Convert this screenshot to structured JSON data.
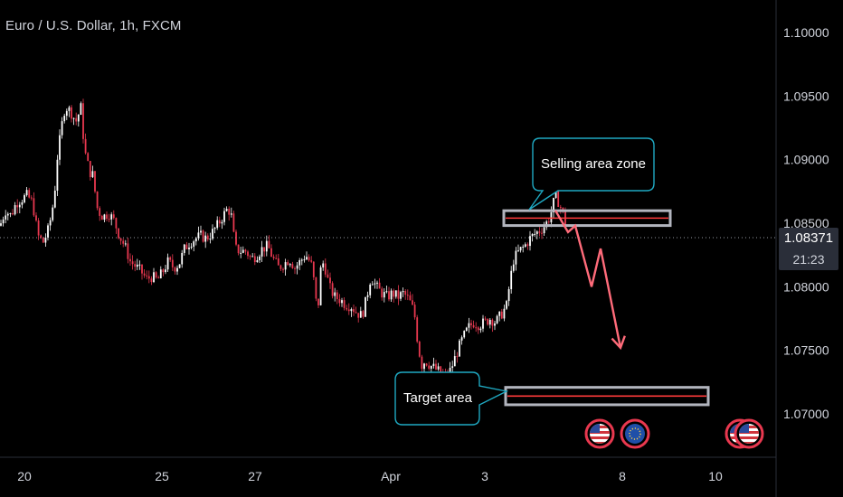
{
  "header": {
    "symbol_title": "Euro / U.S. Dollar, 1h, FXCM"
  },
  "price_badge": {
    "value": "1.08371",
    "countdown": "21:23"
  },
  "annotations": {
    "selling_zone_label": "Selling area zone",
    "target_label": "Target area"
  },
  "colors": {
    "background": "#000000",
    "up_candle": "#ffffff",
    "down_candle": "#e8384f",
    "zone_border": "#b2b5be",
    "zone_line": "#ff3b3b",
    "callout_border": "#1fa9c2",
    "arrow": "#ff6b7a",
    "axis_text": "#d1d4dc"
  },
  "event_icons": [
    {
      "name": "us-flag-icon",
      "date": "Apr 6"
    },
    {
      "name": "eu-flag-icon",
      "date": "Apr 8"
    },
    {
      "name": "us-flag-icon",
      "date": "Apr 11"
    },
    {
      "name": "us-flag-icon",
      "date": "Apr 11"
    }
  ],
  "chart_data": {
    "type": "candlestick",
    "title": "Euro / U.S. Dollar, 1h, FXCM",
    "xlabel": "",
    "ylabel": "",
    "y_ticks": [
      "1.10000",
      "1.09500",
      "1.09000",
      "1.08500",
      "1.08000",
      "1.07500",
      "1.07000"
    ],
    "x_ticks": [
      "20",
      "25",
      "27",
      "Apr",
      "3",
      "8",
      "10"
    ],
    "ylim": [
      1.0665,
      1.1025
    ],
    "last_price": 1.08371,
    "price_path": [
      [
        0,
        1.0848
      ],
      [
        6,
        1.086
      ],
      [
        12,
        1.0856
      ],
      [
        18,
        1.0866
      ],
      [
        24,
        1.0869
      ],
      [
        30,
        1.0872
      ],
      [
        36,
        1.0866
      ],
      [
        42,
        1.084
      ],
      [
        48,
        1.0835
      ],
      [
        54,
        1.0846
      ],
      [
        60,
        1.087
      ],
      [
        63,
        1.09
      ],
      [
        66,
        1.0915
      ],
      [
        69,
        1.093
      ],
      [
        72,
        1.0942
      ],
      [
        78,
        1.0938
      ],
      [
        84,
        1.093
      ],
      [
        90,
        1.0942
      ],
      [
        93,
        1.0908
      ],
      [
        96,
        1.09
      ],
      [
        99,
        1.089
      ],
      [
        102,
        1.089
      ],
      [
        105,
        1.0875
      ],
      [
        108,
        1.086
      ],
      [
        114,
        1.0855
      ],
      [
        120,
        1.0858
      ],
      [
        126,
        1.0852
      ],
      [
        132,
        1.084
      ],
      [
        138,
        1.0832
      ],
      [
        144,
        1.082
      ],
      [
        150,
        1.0816
      ],
      [
        156,
        1.0812
      ],
      [
        162,
        1.0806
      ],
      [
        168,
        1.0808
      ],
      [
        174,
        1.0805
      ],
      [
        180,
        1.0812
      ],
      [
        186,
        1.082
      ],
      [
        192,
        1.0815
      ],
      [
        198,
        1.0818
      ],
      [
        204,
        1.083
      ],
      [
        210,
        1.0835
      ],
      [
        216,
        1.0838
      ],
      [
        222,
        1.084
      ],
      [
        228,
        1.0838
      ],
      [
        234,
        1.0842
      ],
      [
        240,
        1.0848
      ],
      [
        246,
        1.0855
      ],
      [
        252,
        1.0862
      ],
      [
        256,
        1.0855
      ],
      [
        260,
        1.083
      ],
      [
        266,
        1.0828
      ],
      [
        272,
        1.0828
      ],
      [
        278,
        1.0822
      ],
      [
        284,
        1.0825
      ],
      [
        290,
        1.083
      ],
      [
        296,
        1.0832
      ],
      [
        302,
        1.0822
      ],
      [
        308,
        1.0815
      ],
      [
        314,
        1.0818
      ],
      [
        320,
        1.0822
      ],
      [
        326,
        1.0815
      ],
      [
        332,
        1.082
      ],
      [
        338,
        1.0825
      ],
      [
        344,
        1.0818
      ],
      [
        348,
        1.08
      ],
      [
        351,
        1.0775
      ],
      [
        354,
        1.0812
      ],
      [
        358,
        1.082
      ],
      [
        364,
        1.08
      ],
      [
        370,
        1.0792
      ],
      [
        376,
        1.079
      ],
      [
        382,
        1.0786
      ],
      [
        388,
        1.0785
      ],
      [
        394,
        1.078
      ],
      [
        400,
        1.0777
      ],
      [
        405,
        1.079
      ],
      [
        410,
        1.0808
      ],
      [
        416,
        1.08
      ],
      [
        422,
        1.0795
      ],
      [
        428,
        1.0792
      ],
      [
        434,
        1.0795
      ],
      [
        440,
        1.0792
      ],
      [
        446,
        1.0795
      ],
      [
        452,
        1.079
      ],
      [
        458,
        1.078
      ],
      [
        462,
        1.0755
      ],
      [
        466,
        1.0738
      ],
      [
        470,
        1.0742
      ],
      [
        476,
        1.0738
      ],
      [
        482,
        1.0735
      ],
      [
        488,
        1.0732
      ],
      [
        494,
        1.0728
      ],
      [
        500,
        1.0738
      ],
      [
        506,
        1.075
      ],
      [
        512,
        1.076
      ],
      [
        518,
        1.0768
      ],
      [
        524,
        1.0772
      ],
      [
        530,
        1.077
      ],
      [
        536,
        1.0772
      ],
      [
        542,
        1.0775
      ],
      [
        548,
        1.0772
      ],
      [
        554,
        1.0778
      ],
      [
        560,
        1.0785
      ],
      [
        564,
        1.0805
      ],
      [
        568,
        1.0822
      ],
      [
        574,
        1.0828
      ],
      [
        580,
        1.0832
      ],
      [
        586,
        1.0838
      ],
      [
        592,
        1.0842
      ],
      [
        598,
        1.0845
      ],
      [
        602,
        1.0848
      ],
      [
        606,
        1.0852
      ],
      [
        610,
        1.086
      ],
      [
        614,
        1.0872
      ],
      [
        618,
        1.0866
      ],
      [
        622,
        1.0858
      ],
      [
        626,
        1.0848
      ]
    ],
    "zones": [
      {
        "name": "Selling area zone",
        "low": 1.0851,
        "high": 1.0857,
        "x_start": 557,
        "x_end": 741
      },
      {
        "name": "Target area",
        "low": 1.071,
        "high": 1.0718,
        "x_start": 559,
        "x_end": 783
      }
    ],
    "projection": [
      {
        "x": 614,
        "y": 1.086
      },
      {
        "x": 628,
        "y": 1.0843
      },
      {
        "x": 636,
        "y": 1.0848
      },
      {
        "x": 654,
        "y": 1.08
      },
      {
        "x": 664,
        "y": 1.083
      },
      {
        "x": 686,
        "y": 1.0752
      }
    ]
  }
}
